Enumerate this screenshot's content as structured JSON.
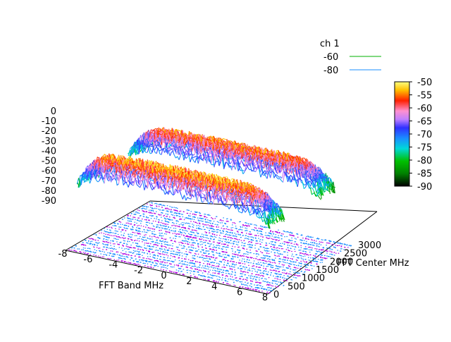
{
  "chart_data": {
    "type": "surface",
    "legend": {
      "title": "ch 1",
      "placement": "top-right",
      "entries": [
        {
          "label": "-60",
          "color": "#00b000"
        },
        {
          "label": "-80",
          "color": "#1a8cff"
        }
      ]
    },
    "xlabel": "FFT Band MHz",
    "ylabel": "FFT Center MHz",
    "x_ticks": [
      "-8",
      "-6",
      "-4",
      "-2",
      "0",
      "2",
      "4",
      "6",
      "8"
    ],
    "y_ticks": [
      "0",
      "500",
      "1000",
      "1500",
      "2000",
      "2500",
      "3000"
    ],
    "z_ticks": [
      "0",
      "-10",
      "-20",
      "-30",
      "-40",
      "-50",
      "-60",
      "-70",
      "-80",
      "-90"
    ],
    "colorbar_ticks": [
      "-50",
      "-55",
      "-60",
      "-65",
      "-70",
      "-75",
      "-80",
      "-85",
      "-90"
    ],
    "xlim": [
      -8,
      8
    ],
    "ylim": [
      0,
      3000
    ],
    "zlim": [
      -90,
      0
    ],
    "colorbar_range": [
      -90,
      -50
    ],
    "bands": [
      {
        "center_mhz": 500,
        "peak_dbm": -55
      },
      {
        "center_mhz": 2300,
        "peak_dbm": -58
      }
    ]
  }
}
